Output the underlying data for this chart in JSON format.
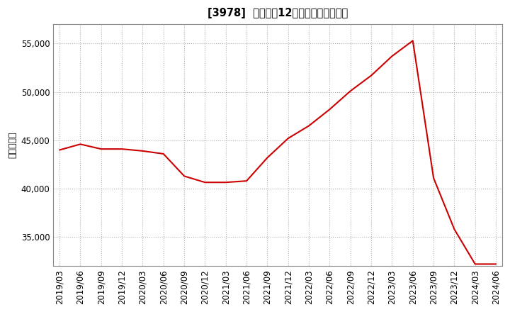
{
  "title": "[3978]  売上高の12か月移動合計の推移",
  "ylabel": "（百万円）",
  "line_color": "#cc0000",
  "background_color": "#ffffff",
  "plot_bg_color": "#ffffff",
  "grid_color": "#b0b0b0",
  "dates": [
    "2019/03",
    "2019/06",
    "2019/09",
    "2019/12",
    "2020/03",
    "2020/06",
    "2020/09",
    "2020/12",
    "2021/03",
    "2021/06",
    "2021/09",
    "2021/12",
    "2022/03",
    "2022/06",
    "2022/09",
    "2022/12",
    "2023/03",
    "2023/06",
    "2023/09",
    "2023/12",
    "2024/03",
    "2024/06"
  ],
  "values": [
    44000,
    44600,
    44100,
    44100,
    43900,
    43600,
    41300,
    40650,
    40650,
    40800,
    43200,
    45200,
    46500,
    48200,
    50100,
    51700,
    53700,
    55300,
    41100,
    35800,
    32200,
    32200
  ],
  "ylim": [
    32000,
    57000
  ],
  "yticks": [
    35000,
    40000,
    45000,
    50000,
    55000
  ],
  "figsize": [
    7.2,
    4.4
  ],
  "dpi": 100
}
